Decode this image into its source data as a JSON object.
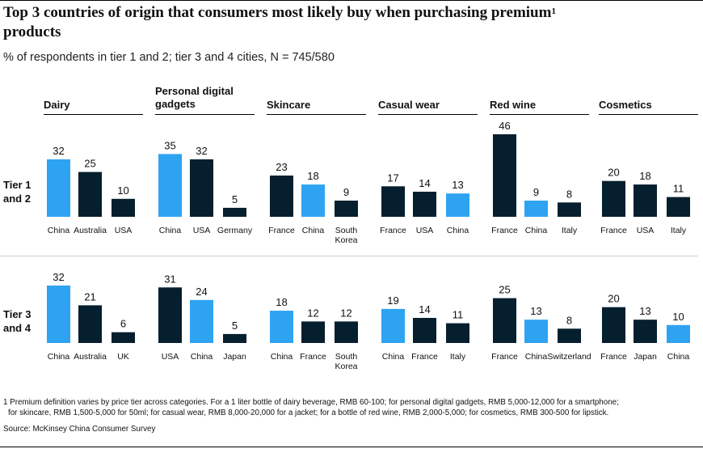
{
  "title": "Top 3 countries of origin that consumers most likely buy when purchasing premium",
  "title_sup": "1",
  "title_line2": "products",
  "subtitle": "% of respondents in tier 1 and 2; tier 3 and 4 cities, N = 745/580",
  "rows": [
    {
      "label_line1": "Tier 1",
      "label_line2": "and 2"
    },
    {
      "label_line1": "Tier 3",
      "label_line2": "and 4"
    }
  ],
  "footnote_line1": "1 Premium definition varies by price tier across categories. For a 1 liter bottle of dairy beverage, RMB 60-100; for personal digital gadgets, RMB 5,000-12,000 for a smartphone;",
  "footnote_line2": "for skincare, RMB 1,500-5,000 for 50ml; for casual wear, RMB 8,000-20,000 for a jacket; for a bottle of red wine, RMB 2,000-5,000; for cosmetics, RMB 300-500 for lipstick.",
  "source": "Source: McKinsey China Consumer Survey",
  "colors": {
    "china": "#2ea3f2",
    "other": "#061f2e"
  },
  "chart_data": {
    "type": "bar",
    "ylim": [
      0,
      46
    ],
    "panels": [
      {
        "category": "Dairy",
        "tier_1_2": [
          {
            "country": "China",
            "value": 32
          },
          {
            "country": "Australia",
            "value": 25
          },
          {
            "country": "USA",
            "value": 10
          }
        ],
        "tier_3_4": [
          {
            "country": "China",
            "value": 32
          },
          {
            "country": "Australia",
            "value": 21
          },
          {
            "country": "UK",
            "value": 6
          }
        ]
      },
      {
        "category": "Personal digital gadgets",
        "tier_1_2": [
          {
            "country": "China",
            "value": 35
          },
          {
            "country": "USA",
            "value": 32
          },
          {
            "country": "Germany",
            "value": 5
          }
        ],
        "tier_3_4": [
          {
            "country": "USA",
            "value": 31
          },
          {
            "country": "China",
            "value": 24
          },
          {
            "country": "Japan",
            "value": 5
          }
        ]
      },
      {
        "category": "Skincare",
        "tier_1_2": [
          {
            "country": "France",
            "value": 23
          },
          {
            "country": "China",
            "value": 18
          },
          {
            "country": "South Korea",
            "value": 9
          }
        ],
        "tier_3_4": [
          {
            "country": "China",
            "value": 18
          },
          {
            "country": "France",
            "value": 12
          },
          {
            "country": "South Korea",
            "value": 12
          }
        ]
      },
      {
        "category": "Casual wear",
        "tier_1_2": [
          {
            "country": "France",
            "value": 17
          },
          {
            "country": "USA",
            "value": 14
          },
          {
            "country": "China",
            "value": 13
          }
        ],
        "tier_3_4": [
          {
            "country": "China",
            "value": 19
          },
          {
            "country": "France",
            "value": 14
          },
          {
            "country": "Italy",
            "value": 11
          }
        ]
      },
      {
        "category": "Red wine",
        "tier_1_2": [
          {
            "country": "France",
            "value": 46
          },
          {
            "country": "China",
            "value": 9
          },
          {
            "country": "Italy",
            "value": 8
          }
        ],
        "tier_3_4": [
          {
            "country": "France",
            "value": 25
          },
          {
            "country": "China",
            "value": 13
          },
          {
            "country": "Switzerland",
            "value": 8
          }
        ]
      },
      {
        "category": "Cosmetics",
        "tier_1_2": [
          {
            "country": "France",
            "value": 20
          },
          {
            "country": "USA",
            "value": 18
          },
          {
            "country": "Italy",
            "value": 11
          }
        ],
        "tier_3_4": [
          {
            "country": "France",
            "value": 20
          },
          {
            "country": "Japan",
            "value": 13
          },
          {
            "country": "China",
            "value": 10
          }
        ]
      }
    ]
  }
}
